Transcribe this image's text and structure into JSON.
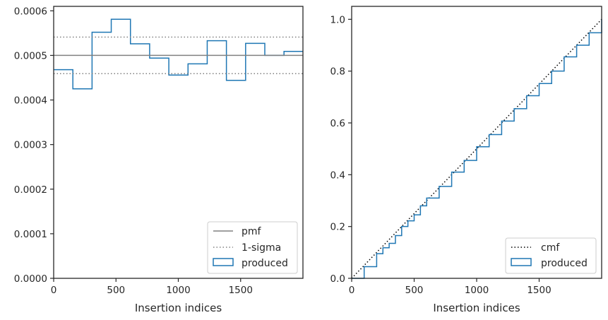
{
  "chart_data": [
    {
      "type": "step-histogram",
      "xlabel": "Insertion indices",
      "ylabel": "",
      "xlim": [
        0,
        2000
      ],
      "ylim": [
        0,
        0.00061
      ],
      "x_ticks": [
        0,
        500,
        1000,
        1500
      ],
      "y_ticks": [
        0.0,
        0.0001,
        0.0002,
        0.0003,
        0.0004,
        0.0005,
        0.0006
      ],
      "x_tick_labels": [
        "0",
        "500",
        "1000",
        "1500"
      ],
      "y_tick_labels": [
        "0.0000",
        "0.0001",
        "0.0002",
        "0.0003",
        "0.0004",
        "0.0005",
        "0.0006"
      ],
      "grid": false,
      "legend_position": "lower-right",
      "series": [
        {
          "name": "produced",
          "kind": "step",
          "color": "#1f77b4",
          "bin_edges": [
            0,
            154,
            308,
            462,
            616,
            770,
            924,
            1078,
            1232,
            1386,
            1540,
            1694,
            1848,
            2000
          ],
          "values": [
            0.000468,
            0.000425,
            0.000552,
            0.000581,
            0.000526,
            0.000494,
            0.000456,
            0.000481,
            0.000533,
            0.000444,
            0.000527,
            0.0005,
            0.000509
          ]
        },
        {
          "name": "pmf",
          "kind": "hline",
          "color": "#808080",
          "style": "solid",
          "value": 0.0005
        },
        {
          "name": "1-sigma",
          "kind": "hline-band",
          "color": "#808080",
          "style": "dotted",
          "values": [
            0.000459,
            0.000541
          ]
        }
      ]
    },
    {
      "type": "line",
      "xlabel": "Insertion indices",
      "ylabel": "",
      "xlim": [
        0,
        2000
      ],
      "ylim": [
        0,
        1.05
      ],
      "x_ticks": [
        0,
        500,
        1000,
        1500
      ],
      "y_ticks": [
        0.0,
        0.2,
        0.4,
        0.6,
        0.8,
        1.0
      ],
      "x_tick_labels": [
        "0",
        "500",
        "1000",
        "1500"
      ],
      "y_tick_labels": [
        "0.0",
        "0.2",
        "0.4",
        "0.6",
        "0.8",
        "1.0"
      ],
      "grid": false,
      "legend_position": "lower-right",
      "series": [
        {
          "name": "cmf",
          "kind": "line",
          "color": "#000000",
          "style": "dotted",
          "x": [
            0,
            2000
          ],
          "y": [
            0,
            1.0
          ]
        },
        {
          "name": "produced",
          "kind": "step",
          "color": "#1f77b4",
          "x": [
            0,
            100,
            200,
            250,
            300,
            350,
            400,
            450,
            500,
            550,
            600,
            700,
            800,
            900,
            1000,
            1100,
            1200,
            1300,
            1400,
            1500,
            1600,
            1700,
            1800,
            1900,
            2000
          ],
          "y": [
            0,
            0.045,
            0.095,
            0.118,
            0.135,
            0.165,
            0.2,
            0.222,
            0.245,
            0.28,
            0.31,
            0.355,
            0.41,
            0.455,
            0.508,
            0.555,
            0.607,
            0.655,
            0.705,
            0.752,
            0.8,
            0.855,
            0.9,
            0.948,
            1.0
          ]
        }
      ]
    }
  ]
}
